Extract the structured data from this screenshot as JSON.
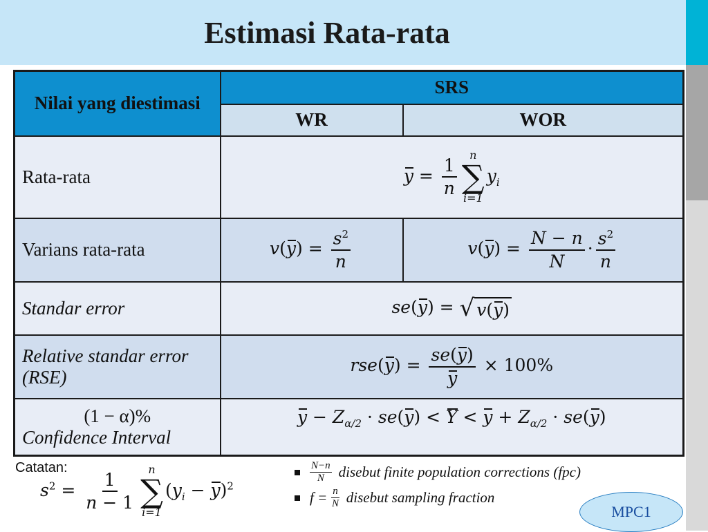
{
  "slide": {
    "title": "Estimasi Rata-rata",
    "badge": "MPC1"
  },
  "table": {
    "header_label": "Nilai yang diestimasi",
    "group_header": "SRS",
    "sub_headers": [
      "WR",
      "WOR"
    ],
    "rows": [
      {
        "label": "Rata-rata"
      },
      {
        "label": "Varians rata-rata"
      },
      {
        "label": "Standar error"
      },
      {
        "label": "Relative standar error (RSE)"
      },
      {
        "label_line1": "(1 − α)%",
        "label_line2": "Confidence Interval"
      }
    ]
  },
  "notes": {
    "label": "Catatan:",
    "fpc_text": "disebut finite population corrections (fpc)",
    "sf_text": "disebut sampling fraction"
  },
  "colors": {
    "header_blue": "#0e8fcf",
    "band_light_blue": "#c6e6f8",
    "accent_cyan": "#00b3d6"
  }
}
